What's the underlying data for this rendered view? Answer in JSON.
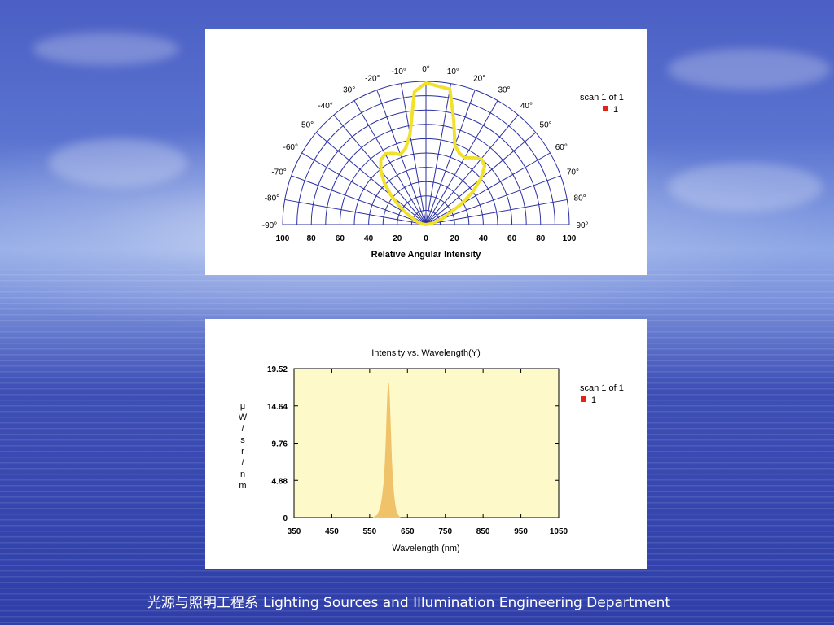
{
  "footer": {
    "chinese_label": "光源与照明工程系",
    "english_label": "Lighting Sources and Illumination Engineering Department"
  },
  "colors": {
    "polar_curve": "#f2e12a",
    "grid": "#2b2fa3",
    "spectrum_fill": "#f0c36b",
    "plot_background": "#fdf9c8",
    "legend_marker": "#e2231a"
  },
  "chart_data": [
    {
      "type": "polar",
      "xlabel": "Relative Angular Intensity",
      "radial_ticks": [
        "100",
        "80",
        "60",
        "40",
        "20",
        "0",
        "20",
        "40",
        "60",
        "80",
        "100"
      ],
      "rlim": [
        0,
        100
      ],
      "angle_ticks_left": [
        "-90°",
        "-80°",
        "-70°",
        "-60°",
        "-50°",
        "-40°",
        "-30°",
        "-20°",
        "-10°",
        "0°"
      ],
      "angle_ticks_right": [
        "10°",
        "20°",
        "30°",
        "40°",
        "50°",
        "60°",
        "70°",
        "80°",
        "90°"
      ],
      "legend": {
        "title": "scan 1 of 1",
        "entry": "1",
        "placement": "right"
      },
      "series": [
        {
          "angles": [
            -90,
            -80,
            -70,
            -60,
            -55,
            -50,
            -45,
            -40,
            -35,
            -30,
            -25,
            -20,
            -15,
            -10,
            -5,
            0,
            5,
            10,
            15,
            20,
            25,
            30,
            35,
            40,
            45,
            50,
            55,
            60,
            70,
            80,
            90
          ],
          "values": [
            0,
            3,
            7,
            16,
            23,
            32,
            41,
            49,
            55,
            57,
            55,
            52,
            55,
            64,
            93,
            99,
            97,
            96,
            75,
            59,
            55,
            54,
            57,
            60,
            58,
            50,
            40,
            28,
            12,
            4,
            0
          ]
        }
      ]
    },
    {
      "type": "area",
      "title": "Intensity vs. Wavelength(Y)",
      "xlabel": "Wavelength (nm)",
      "ylabel_chars": [
        "μ",
        "W",
        "/",
        "s",
        "r",
        "/",
        "n",
        "m"
      ],
      "xlim": [
        350,
        1050
      ],
      "ylim": [
        0,
        19.52
      ],
      "xticks": [
        350,
        450,
        550,
        650,
        750,
        850,
        950,
        1050
      ],
      "yticks": [
        0,
        4.88,
        9.76,
        14.64,
        19.52
      ],
      "ytick_labels": [
        "0",
        "4.88",
        "9.76",
        "14.64",
        "19.52"
      ],
      "grid": false,
      "legend": {
        "title": "scan 1 of 1",
        "entry": "1",
        "placement": "right"
      },
      "series": [
        {
          "x": [
            560,
            570,
            575,
            580,
            584,
            588,
            591,
            594,
            596,
            598,
            600,
            602,
            604,
            606,
            608,
            611,
            614,
            617,
            620,
            625,
            630
          ],
          "y": [
            0,
            0.3,
            0.8,
            1.6,
            2.8,
            4.6,
            7.0,
            10.5,
            13.6,
            16.2,
            17.6,
            16.0,
            13.2,
            10.0,
            7.2,
            4.6,
            2.8,
            1.6,
            0.8,
            0.3,
            0
          ]
        }
      ]
    }
  ]
}
